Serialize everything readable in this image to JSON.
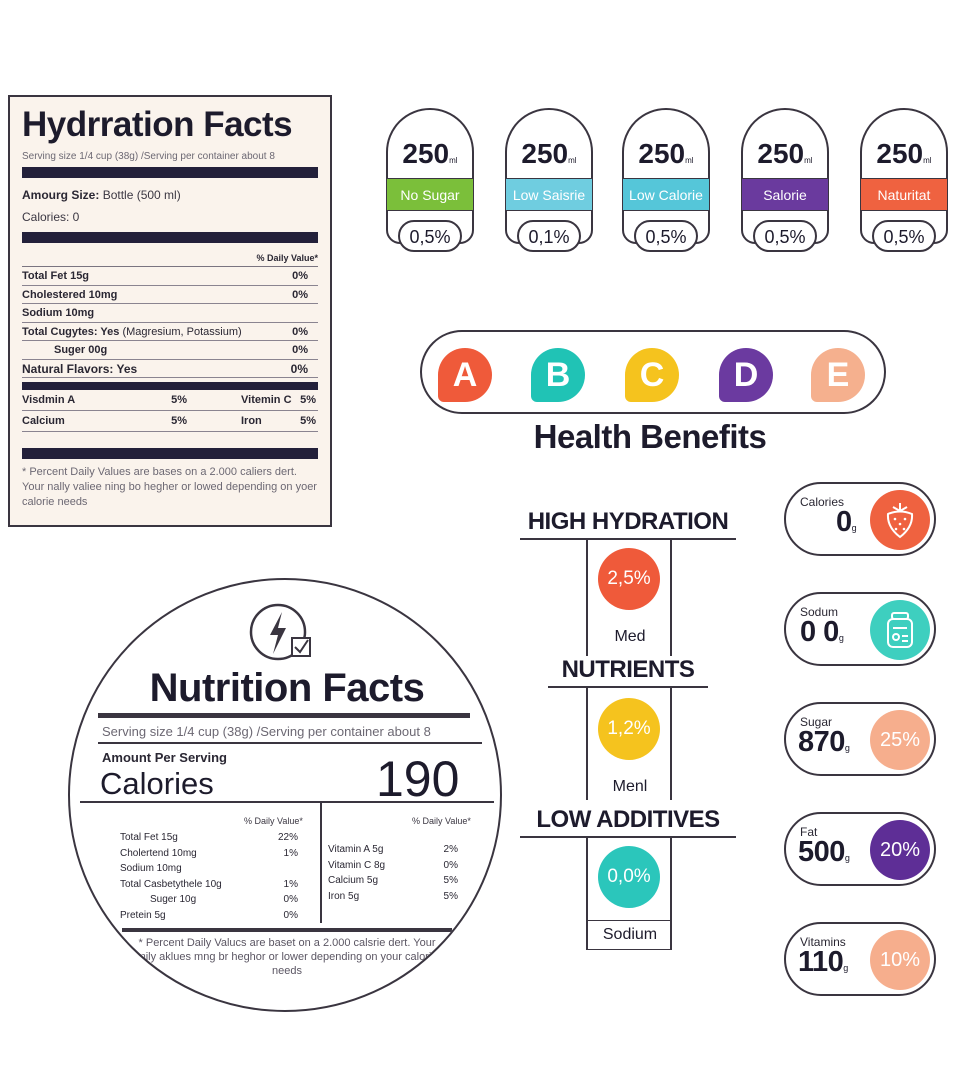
{
  "hydration": {
    "title": "Hydrration Facts",
    "serving": "Serving size 1/4 cup (38g) /Serving per container about 8",
    "amount_label": "Amourg Size:",
    "amount_value": "Bottle (500 ml)",
    "calories": "Calories:  0",
    "daily_value_header": "% Daily Value*",
    "rows": [
      {
        "name": "Total Fet 15g",
        "pct": "0%"
      },
      {
        "name": "Cholestered 10mg",
        "pct": "0%"
      },
      {
        "name": "Sodium 10mg",
        "pct": ""
      },
      {
        "name": "Total Cugytes: Yes",
        "extra": "(Magresium, Potassium)",
        "pct": "0%"
      },
      {
        "name": "Suger 00g",
        "pct": "0%"
      },
      {
        "name": "Natural Flavors:  Yes",
        "pct": "0%"
      }
    ],
    "vitamins": [
      [
        "Visdmin  A",
        "5%",
        "Vitemin  C",
        "5%"
      ],
      [
        "Calcium",
        "5%",
        "Iron",
        "5%"
      ]
    ],
    "footnote": "* Percent Daily Values are bases on a 2.000 caliers dert. Your nally valiee ning bo hegher or lowed depending on yoer calorie needs"
  },
  "badges": [
    {
      "value": "250",
      "unit": "ml",
      "tag": "No Sugar",
      "color": "#7bbf3a",
      "pct": "0,5%"
    },
    {
      "value": "250",
      "unit": "ml",
      "tag": "Low Saisrie",
      "color": "#6fcde0",
      "pct": "0,1%"
    },
    {
      "value": "250",
      "unit": "ml",
      "tag": "Low Calorie",
      "color": "#55c6d9",
      "pct": "0,5%"
    },
    {
      "value": "250",
      "unit": "ml",
      "tag": "Salorie",
      "color": "#6a3a9e",
      "pct": "0,5%"
    },
    {
      "value": "250",
      "unit": "ml",
      "tag": "Naturitat",
      "color": "#ef6240",
      "pct": "0,5%"
    }
  ],
  "grades": [
    {
      "letter": "A",
      "color": "#ef5a3a"
    },
    {
      "letter": "B",
      "color": "#20c3b5"
    },
    {
      "letter": "C",
      "color": "#f5c31e"
    },
    {
      "letter": "D",
      "color": "#6b3aa0"
    },
    {
      "letter": "E",
      "color": "#f5b08e"
    }
  ],
  "health_benefits_title": "Health Benefits",
  "benefits": [
    {
      "title": "HIGH HYDRATION",
      "value": "2,5%",
      "label": "Med",
      "color": "#ef5a3a"
    },
    {
      "title": "NUTRIENTS",
      "value": "1,2%",
      "label": "Menl",
      "color": "#f5c31e"
    },
    {
      "title": "LOW ADDITIVES",
      "value": "0,0%",
      "label": "Sodium",
      "color": "#2bc6bb"
    }
  ],
  "stats": [
    {
      "label": "Calories",
      "value": "0",
      "unit": "g",
      "badge": "",
      "icon": "strawberry-icon",
      "color": "#ef6240"
    },
    {
      "label": "Sodum",
      "value": "0  0",
      "unit": "g",
      "badge": "",
      "icon": "jar-icon",
      "color": "#3ecfbf"
    },
    {
      "label": "Sugar",
      "value": "870",
      "unit": "g",
      "badge": "25%",
      "icon": "",
      "color": "#f6ae8d"
    },
    {
      "label": "Fat",
      "value": "500",
      "unit": "g",
      "badge": "20%",
      "icon": "",
      "color": "#5e2e96"
    },
    {
      "label": "Vitamins",
      "value": "110",
      "unit": "g",
      "badge": "10%",
      "icon": "",
      "color": "#f6ae8d"
    }
  ],
  "nutrition": {
    "icon": "energy-check-icon",
    "title": "Nutrition Facts",
    "serving": "Serving size 1/4 cup (38g) /Serving per container about 8",
    "amount_per_serving": "Amount Per Serving",
    "calories_label": "Calories",
    "calories_value": "190",
    "dv_left": "% Daily Value*",
    "dv_right": "% Daily Value*",
    "left_rows": [
      {
        "name": "Total Fet 15g",
        "pct": "22%"
      },
      {
        "name": "Cholertend 10mg",
        "pct": "1%"
      },
      {
        "name": "Sodium 10mg",
        "pct": ""
      },
      {
        "name": "Total Casbetythele 10g",
        "pct": "1%"
      },
      {
        "name": "Suger 10g",
        "pct": "0%"
      },
      {
        "name": "Pretein 5g",
        "pct": "0%"
      }
    ],
    "right_rows": [
      {
        "name": "Vitamin  A 5g",
        "pct": "2%"
      },
      {
        "name": "Vitamin C 8g",
        "pct": "0%"
      },
      {
        "name": "Calcium 5g",
        "pct": "5%"
      },
      {
        "name": "Iron 5g",
        "pct": "5%"
      }
    ],
    "footnote": "* Percent Daily Valucs are baset on a 2.000 calsrie dert. Your mily aklues mng br heghor or lower depending on your calorie needs"
  }
}
